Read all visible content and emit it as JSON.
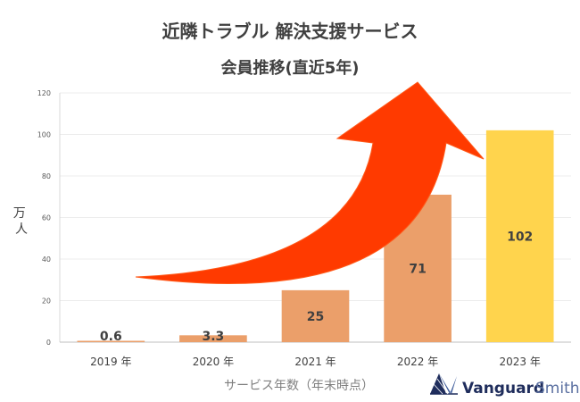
{
  "chart_data": {
    "type": "bar",
    "title": "近隣トラブル 解決支援サービス",
    "subtitle": "会員推移(直近5年)",
    "xlabel": "サービス年数（年末時点）",
    "ylabel": "万人",
    "categories": [
      "2019 年",
      "2020 年",
      "2021 年",
      "2022 年",
      "2023 年"
    ],
    "values": [
      0.6,
      3.3,
      25,
      71,
      102
    ],
    "data_labels": [
      "0.6",
      "3.3",
      "25",
      "71",
      "102"
    ],
    "ylim": [
      0,
      120
    ],
    "yticks": [
      0,
      20,
      40,
      60,
      80,
      100,
      120
    ],
    "grid": true,
    "colors": [
      "#eb9f6a",
      "#eb9f6a",
      "#eb9f6a",
      "#eb9f6a",
      "#ffd44d"
    ],
    "arrow_color": "#ff3a00",
    "annotation": "upward growth arrow"
  },
  "logo": {
    "brand_main": "Vanguard",
    "brand_sub": "Smith",
    "color": "#1f2d5c"
  }
}
